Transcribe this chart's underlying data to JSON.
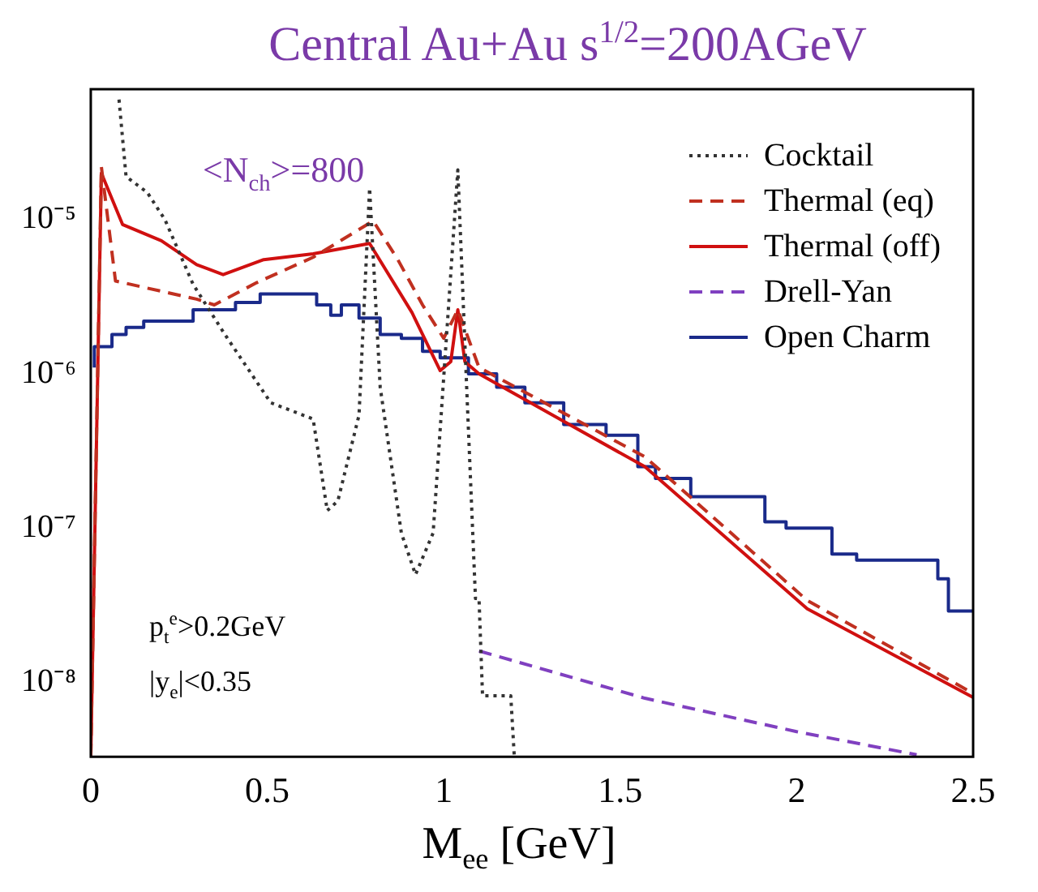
{
  "chart_data": {
    "type": "line",
    "title": "Central Au+Au   s$^{1/2}$=200AGeV",
    "xlabel": "M$_{ee}$ [GeV]",
    "annotations": [
      "<N$_{ch}$>=800",
      "p$_{t}$$^{e}$>0.2GeV",
      "|y$_{e}$|<0.35"
    ],
    "log": "y",
    "grid": false,
    "legend": "top right",
    "marker": "none",
    "xlim": [
      0,
      2.5
    ],
    "xticks": [
      0,
      0.5,
      1,
      1.5,
      2,
      2.5
    ],
    "ylim": [
      3.3e-09,
      7e-05
    ],
    "yticks": [
      {
        "value": 1e-08,
        "label": "10⁻⁸"
      },
      {
        "value": 1e-07,
        "label": "10⁻⁷"
      },
      {
        "value": 1e-06,
        "label": "10⁻⁶"
      },
      {
        "value": 1e-05,
        "label": "10⁻⁵"
      }
    ],
    "series": [
      {
        "name": "Cocktail",
        "color": "#333333",
        "line_style": "dotted",
        "x": [
          0.08,
          0.1,
          0.16,
          0.21,
          0.29,
          0.38,
          0.51,
          0.63,
          0.67,
          0.7,
          0.76,
          0.79,
          0.82,
          0.88,
          0.92,
          0.97,
          1.04,
          1.065,
          1.09,
          1.1,
          1.11,
          1.19,
          1.2
        ],
        "values": [
          6e-05,
          1.9e-05,
          1.5e-05,
          1e-05,
          3.8e-06,
          1.8e-06,
          6.5e-07,
          5.1e-07,
          1.3e-07,
          1.5e-07,
          5.4e-07,
          1.6e-05,
          8.2e-07,
          9.3e-08,
          5e-08,
          9.3e-08,
          2.1e-05,
          8.2e-07,
          3.5e-08,
          3.5e-08,
          8.2e-09,
          8.2e-09,
          3.3e-09
        ]
      },
      {
        "name": "Thermal (eq)",
        "color": "#c03020",
        "line_style": "dashed",
        "x": [
          0.0,
          0.03,
          0.07,
          0.3,
          0.35,
          0.47,
          0.63,
          0.8,
          0.87,
          0.94,
          1.0,
          1.04,
          1.1,
          1.57,
          2.03,
          2.5
        ],
        "values": [
          3.3e-09,
          2.2e-05,
          4e-06,
          3.05e-06,
          2.8e-06,
          3.9e-06,
          5.7e-06,
          9.8e-06,
          5.5e-06,
          2.8e-06,
          1.7e-06,
          2.6e-06,
          1.1e-06,
          2.9e-07,
          3.4e-08,
          8.5e-09
        ]
      },
      {
        "name": "Thermal (off)",
        "color": "#d01010",
        "line_style": "solid",
        "x": [
          0.0,
          0.03,
          0.09,
          0.2,
          0.3,
          0.375,
          0.49,
          0.63,
          0.79,
          0.91,
          0.99,
          1.02,
          1.04,
          1.06,
          1.1,
          1.57,
          2.03,
          2.5
        ],
        "values": [
          3.3e-09,
          2e-05,
          9.3e-06,
          7.3e-06,
          5.1e-06,
          4.4e-06,
          5.5e-06,
          6e-06,
          7e-06,
          2.5e-06,
          1.05e-06,
          1.2e-06,
          2.6e-06,
          1.2e-06,
          1e-06,
          2.5e-07,
          3e-08,
          8e-09
        ]
      },
      {
        "name": "Drell-Yan",
        "color": "#8040c0",
        "line_style": "dashed",
        "x": [
          1.1,
          1.57,
          2.0,
          2.34
        ],
        "values": [
          1.6e-08,
          7.9e-09,
          4.8e-09,
          3.4e-09
        ]
      },
      {
        "name": "Open Charm",
        "color": "#1a2a8a",
        "type": "step",
        "line_style": "solid",
        "x": [
          0.01,
          0.06,
          0.1,
          0.15,
          0.29,
          0.41,
          0.48,
          0.64,
          0.68,
          0.71,
          0.76,
          0.82,
          0.88,
          0.94,
          0.99,
          1.07,
          1.15,
          1.23,
          1.34,
          1.46,
          1.55,
          1.6,
          1.7,
          1.91,
          1.97,
          2.1,
          2.17,
          2.4,
          2.43,
          2.49,
          2.5
        ],
        "values": [
          1.1e-06,
          1.5e-06,
          1.8e-06,
          2e-06,
          2.2e-06,
          2.6e-06,
          2.9e-06,
          3.3e-06,
          2.8e-06,
          2.4e-06,
          2.8e-06,
          2.3e-06,
          1.8e-06,
          1.7e-06,
          1.4e-06,
          1.27e-06,
          1e-06,
          8.2e-07,
          6.5e-07,
          4.7e-07,
          4e-07,
          2.5e-07,
          2.1e-07,
          1.6e-07,
          1.1e-07,
          1e-07,
          6.8e-08,
          6.2e-08,
          4.7e-08,
          2.9e-08,
          2.9e-08
        ]
      }
    ]
  }
}
